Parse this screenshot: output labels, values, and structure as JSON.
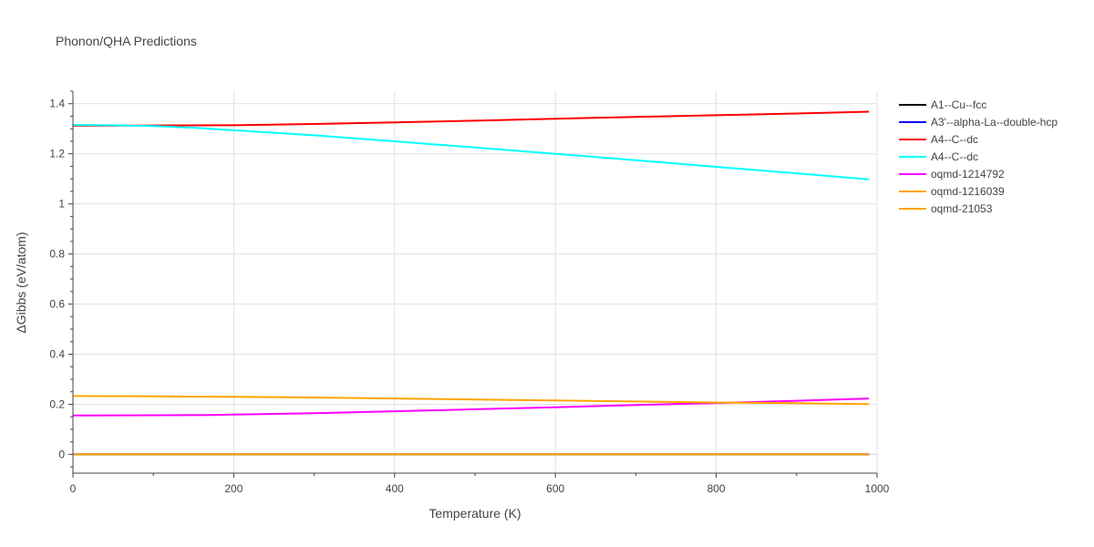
{
  "chart_data": {
    "type": "line",
    "title": "Phonon/QHA Predictions",
    "xlabel": "Temperature (K)",
    "ylabel": "ΔGibbs (eV/atom)",
    "xlim": [
      0,
      1000
    ],
    "ylim": [
      -0.075,
      1.45
    ],
    "xticks": [
      0,
      200,
      400,
      600,
      800,
      1000
    ],
    "xtick_labels": [
      "0",
      "200",
      "400",
      "600",
      "800",
      "1000"
    ],
    "yticks": [
      0,
      0.2,
      0.4,
      0.6,
      0.8,
      1,
      1.2,
      1.4
    ],
    "ytick_labels": [
      "0",
      "0.2",
      "0.4",
      "0.6",
      "0.8",
      "1",
      "1.2",
      "1.4"
    ],
    "grid": true,
    "legend_position": "right",
    "series": [
      {
        "name": "A1--Cu--fcc",
        "color": "#000000",
        "x": [
          0,
          990
        ],
        "y": [
          0,
          0
        ]
      },
      {
        "name": "A3'--alpha-La--double-hcp",
        "color": "#0000ff",
        "x": [
          0,
          990
        ],
        "y": [
          0,
          0
        ]
      },
      {
        "name": "A4--C--dc",
        "color": "#ff0000",
        "x": [
          0,
          100,
          200,
          300,
          400,
          500,
          600,
          700,
          800,
          900,
          990
        ],
        "y": [
          1.312,
          1.313,
          1.314,
          1.319,
          1.325,
          1.332,
          1.34,
          1.347,
          1.354,
          1.361,
          1.368
        ]
      },
      {
        "name": "A4--C--dc",
        "color": "#00ffff",
        "x": [
          0,
          50,
          100,
          150,
          200,
          300,
          400,
          500,
          600,
          700,
          800,
          900,
          990
        ],
        "y": [
          1.315,
          1.314,
          1.311,
          1.304,
          1.294,
          1.274,
          1.25,
          1.225,
          1.2,
          1.174,
          1.148,
          1.122,
          1.098
        ]
      },
      {
        "name": "oqmd-1214792",
        "color": "#ff00ff",
        "x": [
          0,
          100,
          170,
          200,
          300,
          400,
          500,
          600,
          700,
          800,
          900,
          990
        ],
        "y": [
          0.155,
          0.156,
          0.157,
          0.159,
          0.164,
          0.172,
          0.18,
          0.188,
          0.197,
          0.205,
          0.214,
          0.223
        ]
      },
      {
        "name": "oqmd-1216039",
        "color": "#ffa500",
        "x": [
          0,
          100,
          200,
          300,
          400,
          500,
          600,
          700,
          800,
          900,
          990
        ],
        "y": [
          0.233,
          0.232,
          0.23,
          0.227,
          0.223,
          0.219,
          0.215,
          0.211,
          0.207,
          0.204,
          0.201
        ]
      },
      {
        "name": "oqmd-21053",
        "color": "#ffa500",
        "x": [
          0,
          990
        ],
        "y": [
          0,
          0
        ]
      }
    ]
  }
}
